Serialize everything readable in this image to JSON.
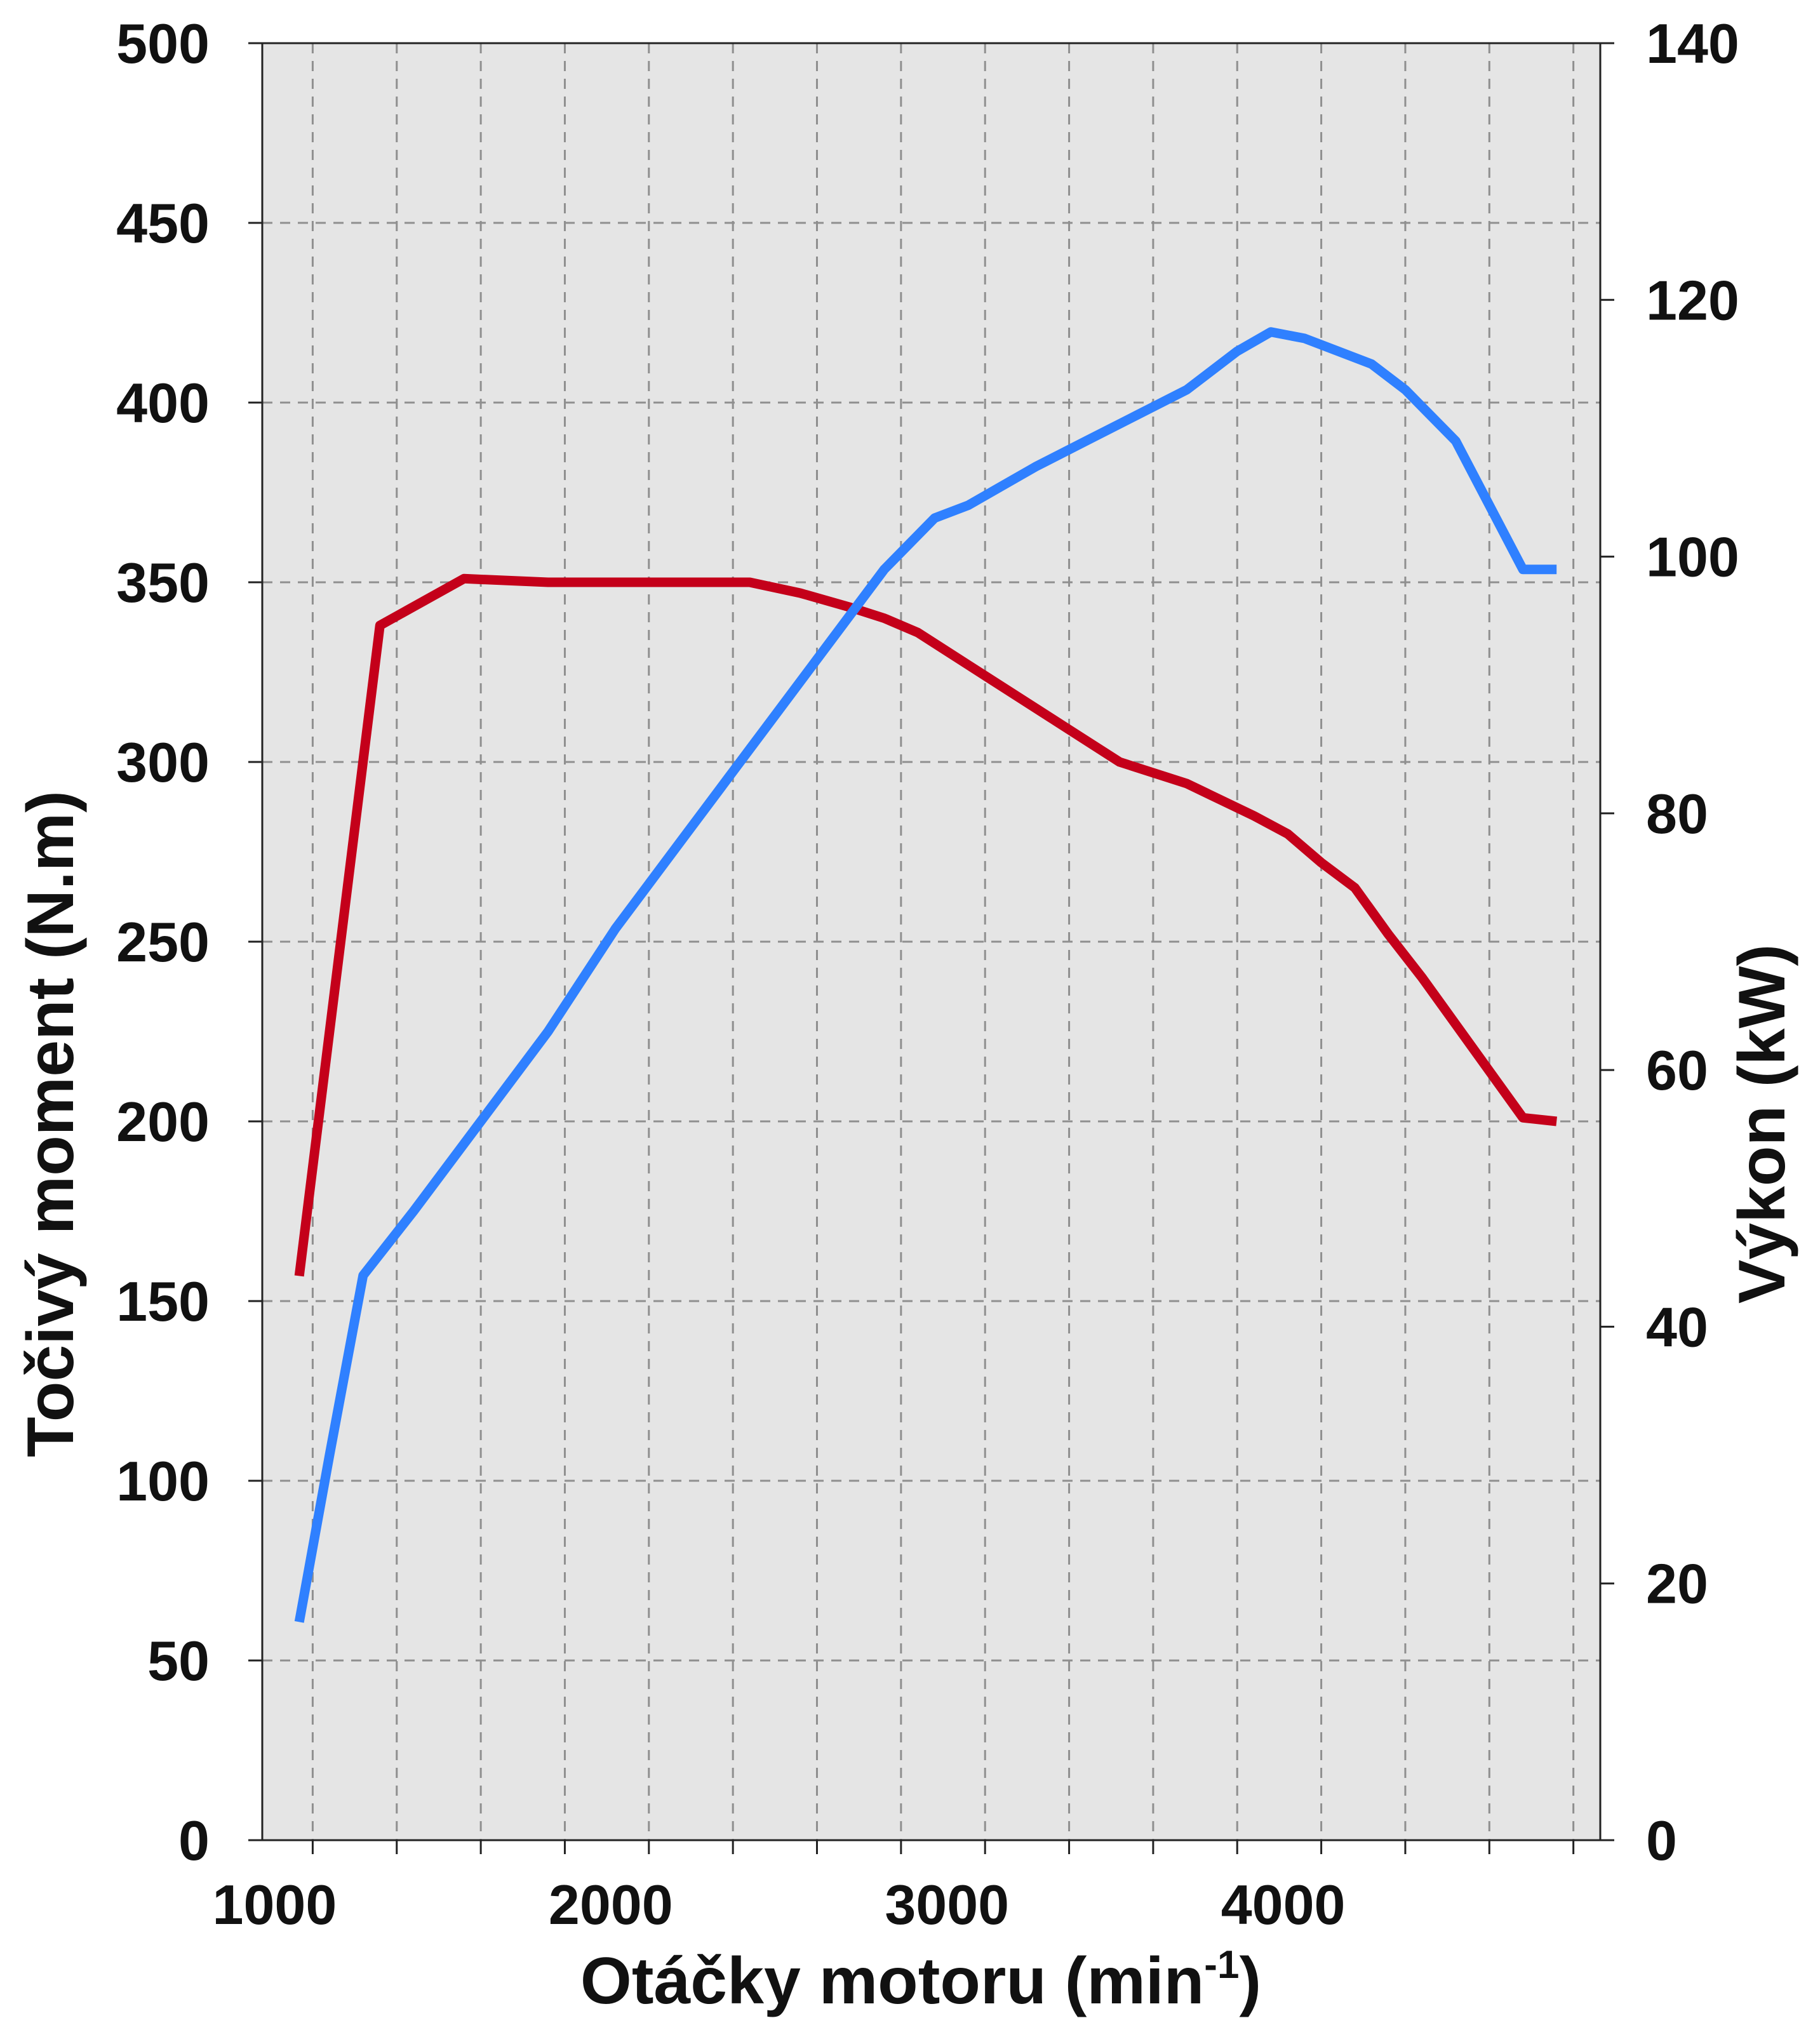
{
  "chart_data": {
    "type": "line",
    "xlabel": "Otáčky motoru (min",
    "xlabel_sup": "-1",
    "xlabel_end": ")",
    "ylabel": "Točivý moment (N.m)",
    "y2label": "Výkon (kW)",
    "xlim": [
      850,
      4830
    ],
    "ylim": [
      0,
      500
    ],
    "y2lim": [
      0,
      140
    ],
    "x_ticks": [
      1000,
      2000,
      3000,
      4000
    ],
    "y_ticks": [
      0,
      50,
      100,
      150,
      200,
      250,
      300,
      350,
      400,
      450,
      500
    ],
    "y2_ticks": [
      0,
      20,
      40,
      60,
      80,
      100,
      120,
      140
    ],
    "grid": true,
    "background": "#e5e5e5",
    "series": [
      {
        "axis": "left",
        "color": "#c4001a",
        "x": [
          960,
          1200,
          1450,
          1700,
          2000,
          2300,
          2450,
          2600,
          2700,
          2800,
          3000,
          3200,
          3400,
          3600,
          3800,
          3900,
          4000,
          4100,
          4200,
          4300,
          4400,
          4500,
          4600,
          4700
        ],
        "y": [
          157,
          338,
          351,
          350,
          350,
          350,
          347,
          343,
          340,
          336,
          324,
          312,
          300,
          294,
          285,
          280,
          272,
          265,
          252,
          240,
          227,
          214,
          201,
          200
        ]
      },
      {
        "axis": "right",
        "color": "#2f80ff",
        "x": [
          960,
          1050,
          1150,
          1300,
          1500,
          1700,
          1900,
          2100,
          2300,
          2500,
          2700,
          2850,
          2950,
          3150,
          3300,
          3450,
          3600,
          3750,
          3850,
          3950,
          4050,
          4150,
          4250,
          4400,
          4500,
          4600,
          4700
        ],
        "y": [
          17,
          30,
          44,
          49,
          56,
          63,
          71,
          78,
          85,
          92,
          99,
          103,
          104,
          107,
          109,
          111,
          113,
          116,
          117.5,
          117,
          116,
          115,
          113,
          109,
          104,
          99,
          99
        ]
      }
    ]
  }
}
